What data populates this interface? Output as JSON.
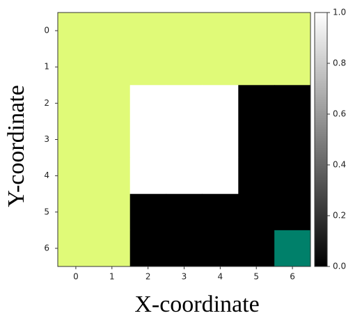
{
  "chart_data": {
    "type": "heatmap",
    "x_label": "X-coordinate",
    "y_label": "Y-coordinate",
    "xlim": [
      -0.5,
      6.5
    ],
    "ylim": [
      6.5,
      -0.5
    ],
    "xticks": [
      0,
      1,
      2,
      3,
      4,
      5,
      6
    ],
    "yticks": [
      0,
      1,
      2,
      3,
      4,
      5,
      6
    ],
    "values": [
      [
        null,
        null,
        null,
        null,
        null,
        null,
        null
      ],
      [
        null,
        null,
        null,
        null,
        null,
        null,
        null
      ],
      [
        null,
        null,
        1,
        1,
        1,
        0,
        0
      ],
      [
        null,
        null,
        1,
        1,
        1,
        0,
        0
      ],
      [
        null,
        null,
        1,
        1,
        1,
        0,
        0
      ],
      [
        null,
        null,
        0,
        0,
        0,
        0,
        0
      ],
      [
        null,
        null,
        0,
        0,
        0,
        0,
        null
      ]
    ],
    "cell_colors": [
      [
        "#e0fa78",
        "#e0fa78",
        "#e0fa78",
        "#e0fa78",
        "#e0fa78",
        "#e0fa78",
        "#e0fa78"
      ],
      [
        "#e0fa78",
        "#e0fa78",
        "#e0fa78",
        "#e0fa78",
        "#e0fa78",
        "#e0fa78",
        "#e0fa78"
      ],
      [
        "#e0fa78",
        "#e0fa78",
        "#ffffff",
        "#ffffff",
        "#ffffff",
        "#000000",
        "#000000"
      ],
      [
        "#e0fa78",
        "#e0fa78",
        "#ffffff",
        "#ffffff",
        "#ffffff",
        "#000000",
        "#000000"
      ],
      [
        "#e0fa78",
        "#e0fa78",
        "#ffffff",
        "#ffffff",
        "#ffffff",
        "#000000",
        "#000000"
      ],
      [
        "#e0fa78",
        "#e0fa78",
        "#000000",
        "#000000",
        "#000000",
        "#000000",
        "#000000"
      ],
      [
        "#e0fa78",
        "#e0fa78",
        "#000000",
        "#000000",
        "#000000",
        "#000000",
        "#00806a"
      ]
    ],
    "colorbar": {
      "lim": [
        0,
        1
      ],
      "colors": [
        "#000000",
        "#ffffff"
      ],
      "ticks": [
        {
          "value": 0,
          "label": "0.0"
        },
        {
          "value": 0.2,
          "label": "0.2"
        },
        {
          "value": 0.4,
          "label": "0.4"
        },
        {
          "value": 0.6,
          "label": "0.6"
        },
        {
          "value": 0.8,
          "label": "0.8"
        },
        {
          "value": 1,
          "label": "1.0"
        }
      ]
    }
  }
}
